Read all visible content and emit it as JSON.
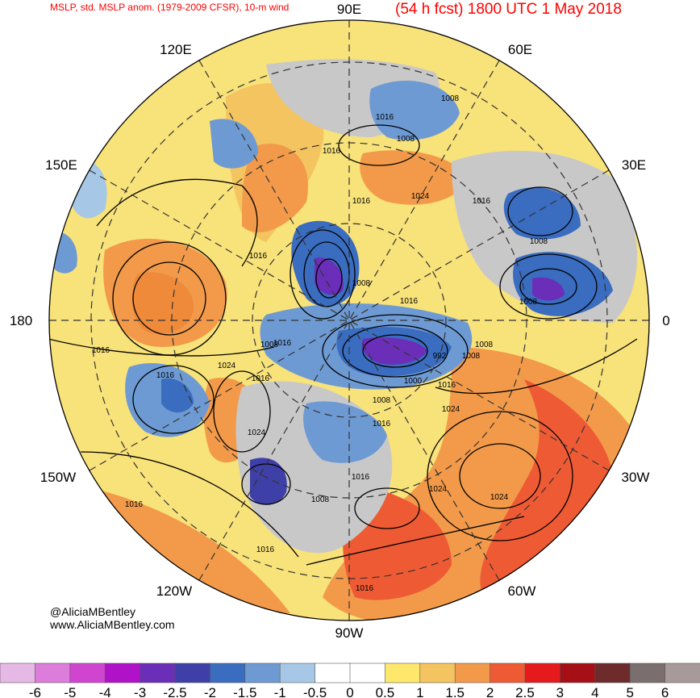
{
  "header": {
    "title": "MSLP, std. MSLP anom. (1979-2009 CFSR), 10-m wind",
    "forecast": "(54 h fcst) 1800 UTC 1 May 2018"
  },
  "longitudes": {
    "top": "90E",
    "bottom": "90W",
    "left": "180",
    "right": "0",
    "upper_left": "120E",
    "upper_right": "60E",
    "left_upper": "150E",
    "right_upper": "30E",
    "left_lower": "150W",
    "right_lower": "30W",
    "lower_left": "120W",
    "lower_right": "60W"
  },
  "credits": {
    "handle": "@AliciaMBentley",
    "website": "www.AliciaMBentley.com"
  },
  "isobar_labels": [
    "1008",
    "1016",
    "1008",
    "1016",
    "1024",
    "1016",
    "1016",
    "1008",
    "1016",
    "1008",
    "1008",
    "1016",
    "1008",
    "992",
    "1008",
    "1000",
    "1016",
    "1024",
    "1008",
    "1016",
    "1024",
    "1016",
    "1016",
    "1024",
    "1024",
    "1008",
    "1024",
    "1016",
    "1016",
    "1016",
    "1016",
    "1016",
    "1008",
    "1016"
  ],
  "colorbar": {
    "ticks": [
      "-6",
      "-5",
      "-4",
      "-3",
      "-2.5",
      "-2",
      "-1.5",
      "-1",
      "-0.5",
      "0",
      "0.5",
      "1",
      "1.5",
      "2",
      "2.5",
      "3",
      "4",
      "5",
      "6"
    ],
    "colors": [
      "#e6b8e6",
      "#dc7ddc",
      "#d045d0",
      "#b012c8",
      "#6b2eb8",
      "#3f3fa8",
      "#3a6cbf",
      "#6e9ad3",
      "#a6c8e6",
      "#ffffff",
      "#ffffff",
      "#fde86c",
      "#f4c460",
      "#f29a4a",
      "#ee5a34",
      "#e41a1c",
      "#a50f15",
      "#6e2b2b",
      "#7a6e6e",
      "#a89a9a"
    ]
  }
}
